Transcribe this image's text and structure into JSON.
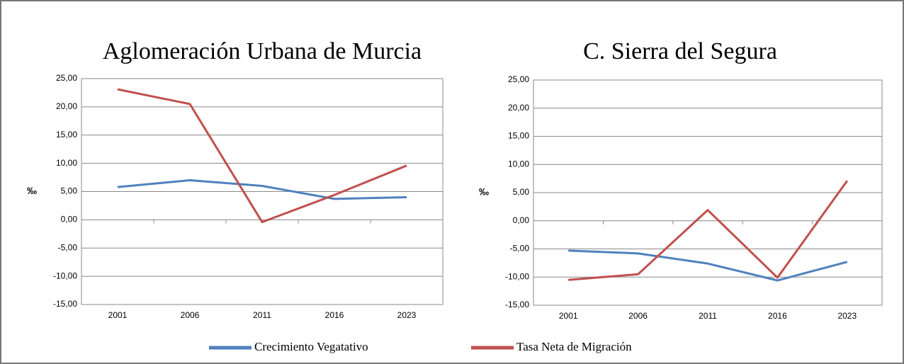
{
  "chart_data": [
    {
      "type": "line",
      "title": "Aglomeración Urbana de Murcia",
      "ylabel": "‰",
      "categories": [
        "2001",
        "2006",
        "2011",
        "2016",
        "2023"
      ],
      "series": [
        {
          "name": "Crecimiento Vegatativo",
          "color": "#4f81bd",
          "values": [
            5.8,
            7.0,
            6.0,
            3.7,
            4.0
          ]
        },
        {
          "name": "Tasa Neta de Migración",
          "color": "#c0504d",
          "values": [
            23.1,
            20.5,
            -0.4,
            4.4,
            9.6
          ]
        }
      ],
      "ylim": [
        -15,
        25
      ],
      "yticks": [
        {
          "value": -15,
          "label": "-15,00"
        },
        {
          "value": -10,
          "label": "-10,00"
        },
        {
          "value": -5,
          "label": "-5,00"
        },
        {
          "value": 0,
          "label": "0,00"
        },
        {
          "value": 5,
          "label": "5,00"
        },
        {
          "value": 10,
          "label": "10,00"
        },
        {
          "value": 15,
          "label": "15,00"
        },
        {
          "value": 20,
          "label": "20,00"
        },
        {
          "value": 25,
          "label": "25,00"
        }
      ],
      "grid": true
    },
    {
      "type": "line",
      "title": "C. Sierra del Segura",
      "ylabel": "‰",
      "categories": [
        "2001",
        "2006",
        "2011",
        "2016",
        "2023"
      ],
      "series": [
        {
          "color": "#4f81bd",
          "values": [
            -5.3,
            -5.8,
            -7.6,
            -10.6,
            -7.3
          ]
        },
        {
          "color": "#c0504d",
          "values": [
            -10.5,
            -9.5,
            1.9,
            -10.1,
            7.1
          ]
        }
      ],
      "ylim": [
        -15,
        25
      ],
      "yticks": [
        {
          "value": -15,
          "label": "-15,00"
        },
        {
          "value": -10,
          "label": "-10,00"
        },
        {
          "value": -5,
          "label": "-5,00"
        },
        {
          "value": 0,
          "label": "0,00"
        },
        {
          "value": 5,
          "label": "5,00"
        },
        {
          "value": 10,
          "label": "10,00"
        },
        {
          "value": 15,
          "label": "15,00"
        },
        {
          "value": 20,
          "label": "20,00"
        },
        {
          "value": 25,
          "label": "25,00"
        }
      ],
      "grid": true
    }
  ]
}
